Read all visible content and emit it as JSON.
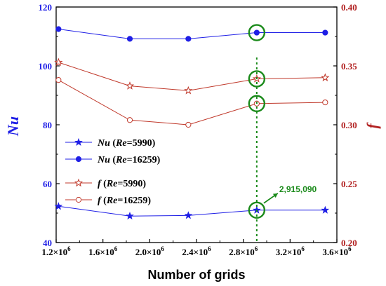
{
  "chart_data": {
    "type": "line",
    "xlabel": "Number of grids",
    "ylabel_left": "Nu",
    "ylabel_right": "f",
    "x_ticks": [
      "1.2×10",
      "1.6×10",
      "2.0×10",
      "2.4×10",
      "2.8×10",
      "3.2×10",
      "3.6×10"
    ],
    "x_tick_values": [
      1200000,
      1600000,
      2000000,
      2400000,
      2800000,
      3200000,
      3600000
    ],
    "x_tick_exponent": "6",
    "xlim": [
      1200000,
      3600000
    ],
    "ylim_left": [
      40,
      120
    ],
    "left_ticks": [
      "40",
      "60",
      "80",
      "100",
      "120"
    ],
    "left_tick_values": [
      40,
      60,
      80,
      100,
      120
    ],
    "ylim_right": [
      0.2,
      0.4
    ],
    "right_ticks": [
      "0.20",
      "0.25",
      "0.30",
      "0.35",
      "0.40"
    ],
    "right_tick_values": [
      0.2,
      0.25,
      0.3,
      0.35,
      0.4
    ],
    "x": [
      1220000,
      1830000,
      2330000,
      2915090,
      3500000
    ],
    "series": [
      {
        "name_var": "Nu",
        "name_re": "Re",
        "name_val": "=5990",
        "axis": "left",
        "marker": "star-filled",
        "color": "#1f1fe6",
        "values": [
          52.3,
          49.0,
          49.2,
          51.0,
          51.0
        ]
      },
      {
        "name_var": "Nu",
        "name_re": "Re",
        "name_val": "=16259",
        "axis": "left",
        "marker": "circle-filled",
        "color": "#1f1fe6",
        "values": [
          112.5,
          109.2,
          109.2,
          111.3,
          111.3
        ]
      },
      {
        "name_var": "f",
        "name_re": "Re",
        "name_val": "=5990",
        "axis": "right",
        "marker": "star-open",
        "color": "#c0392b",
        "values": [
          0.353,
          0.333,
          0.329,
          0.339,
          0.34
        ]
      },
      {
        "name_var": "f",
        "name_re": "Re",
        "name_val": "=16259",
        "axis": "right",
        "marker": "circle-open",
        "color": "#c0392b",
        "values": [
          0.338,
          0.304,
          0.3,
          0.318,
          0.319
        ]
      }
    ],
    "annotation": {
      "label": "2,915,090",
      "x": 2915090,
      "color": "#1a8a1a"
    },
    "highlight_circles": [
      {
        "series": 1,
        "point": 3
      },
      {
        "series": 2,
        "point": 3
      },
      {
        "series": 3,
        "point": 3
      },
      {
        "series": 0,
        "point": 3
      }
    ],
    "colors": {
      "left_axis": "#1f1fe6",
      "right_axis": "#b22222",
      "annotation": "#1a8a1a"
    },
    "legend_position": "left-middle"
  }
}
